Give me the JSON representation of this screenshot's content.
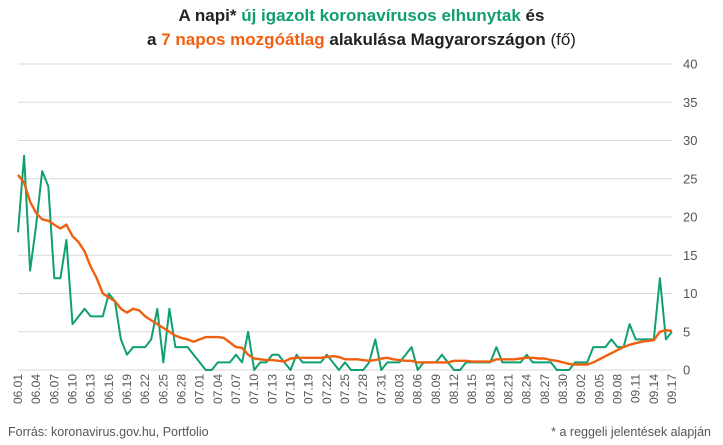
{
  "title": {
    "line1_part1": "A napi* ",
    "line1_part2": "új igazolt koronavírusos elhunytak",
    "line1_part3": " és",
    "line2_part1": "a ",
    "line2_part2": "7 napos mozgóátlag",
    "line2_part3": " alakulása Magyarországon",
    "line2_part4": " (fő)"
  },
  "footer": {
    "source": "Forrás: koronavirus.gov.hu, Portfolio",
    "note": "* a reggeli jelentések alapján"
  },
  "colors": {
    "daily": "#10a070",
    "avg": "#f06010",
    "grid": "#d9d9d9",
    "text": "#222222"
  },
  "chart_data": {
    "type": "line",
    "ylim": [
      0,
      40
    ],
    "yticks": [
      0,
      5,
      10,
      15,
      20,
      25,
      30,
      35,
      40
    ],
    "y_axis_side": "right",
    "grid": true,
    "x_tick_labels": [
      "06.01",
      "06.04",
      "06.07",
      "06.10",
      "06.13",
      "06.16",
      "06.19",
      "06.22",
      "06.25",
      "06.28",
      "07.01",
      "07.04",
      "07.07",
      "07.10",
      "07.13",
      "07.16",
      "07.19",
      "07.22",
      "07.25",
      "07.28",
      "07.31",
      "08.03",
      "08.06",
      "08.09",
      "08.12",
      "08.15",
      "08.18",
      "08.21",
      "08.24",
      "08.27",
      "08.30",
      "09.02",
      "09.05",
      "09.08",
      "09.11",
      "09.14",
      "09.17"
    ],
    "series": [
      {
        "key": "daily",
        "color": "#10a070",
        "values": [
          18,
          28,
          13,
          19,
          26,
          24,
          12,
          12,
          17,
          6,
          7,
          8,
          7,
          7,
          7,
          10,
          9,
          4,
          2,
          3,
          3,
          3,
          4,
          8,
          1,
          8,
          3,
          3,
          3,
          2,
          1,
          0,
          0,
          1,
          1,
          1,
          2,
          1,
          5,
          0,
          1,
          1,
          2,
          2,
          1,
          0,
          2,
          1,
          1,
          1,
          1,
          2,
          1,
          0,
          1,
          0,
          0,
          0,
          1,
          4,
          0,
          1,
          1,
          1,
          2,
          3,
          0,
          1,
          1,
          1,
          2,
          1,
          0,
          0,
          1,
          1,
          1,
          1,
          1,
          3,
          1,
          1,
          1,
          1,
          2,
          1,
          1,
          1,
          1,
          0,
          0,
          0,
          1,
          1,
          1,
          3,
          3,
          3,
          4,
          3,
          3,
          6,
          4,
          4,
          4,
          4,
          12,
          4,
          5
        ]
      },
      {
        "key": "avg",
        "color": "#f06010",
        "values": [
          25.5,
          24.5,
          22,
          20.5,
          19.7,
          19.5,
          19,
          18.5,
          19,
          17.5,
          16.7,
          15.5,
          13.5,
          12,
          10,
          9.5,
          9,
          8,
          7.5,
          8,
          7.8,
          7,
          6.5,
          6,
          5.5,
          5,
          4.5,
          4.2,
          4,
          3.7,
          4,
          4.3,
          4.3,
          4.3,
          4.2,
          3.6,
          3,
          2.9,
          2,
          1.5,
          1.4,
          1.3,
          1.3,
          1.2,
          1.1,
          1.5,
          1.6,
          1.6,
          1.6,
          1.6,
          1.6,
          1.7,
          1.8,
          1.7,
          1.4,
          1.4,
          1.4,
          1.3,
          1.2,
          1.3,
          1.5,
          1.6,
          1.4,
          1.3,
          1.2,
          1.2,
          1,
          1,
          1,
          1,
          1,
          1,
          1.2,
          1.2,
          1.2,
          1.1,
          1.1,
          1.1,
          1.1,
          1.4,
          1.4,
          1.4,
          1.4,
          1.5,
          1.6,
          1.6,
          1.5,
          1.5,
          1.3,
          1.2,
          1,
          0.8,
          0.7,
          0.7,
          0.7,
          1,
          1.4,
          1.8,
          2.2,
          2.6,
          3,
          3.3,
          3.5,
          3.7,
          3.8,
          3.9,
          5,
          5.2,
          5.1
        ]
      }
    ]
  }
}
